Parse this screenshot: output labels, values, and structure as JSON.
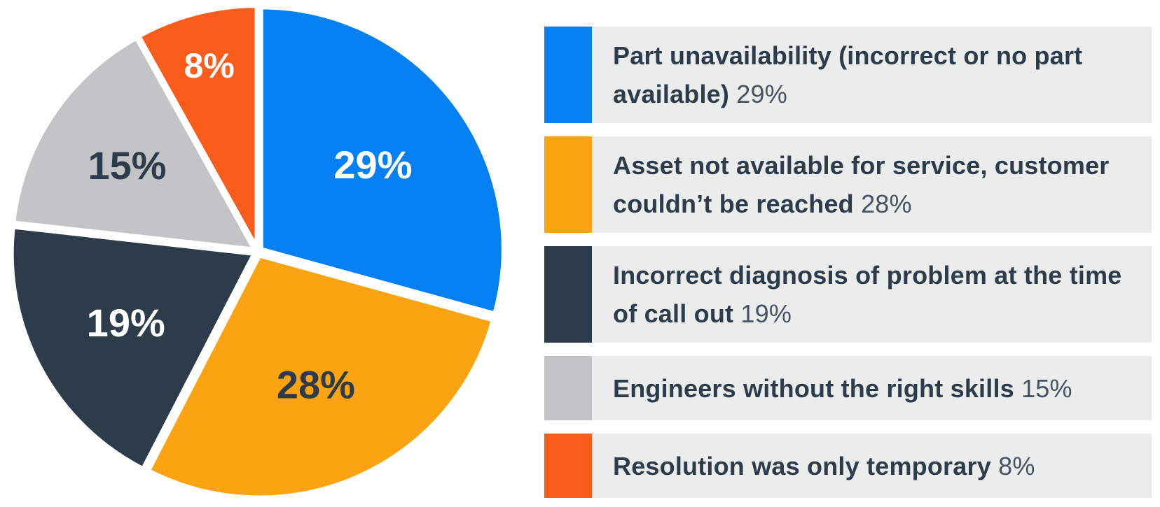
{
  "chart_data": {
    "type": "pie",
    "title": "",
    "unit": "%",
    "start_angle_deg": 0,
    "direction": "clockwise",
    "legend_position": "right",
    "grid": false,
    "slice_gap_color": "#FFFFFF",
    "legend_row_bg": "#EBECEC",
    "legend_text_color": "#2E3B4A",
    "legend_value_color": "#46525F",
    "slices": [
      {
        "label": "Part unavailability (incorrect or no part available)",
        "value": 29,
        "value_text": "29%",
        "color": "#0580F2",
        "value_label_color": "#FFFFFF"
      },
      {
        "label": "Asset not available for service, customer couldn’t be reached",
        "value": 28,
        "value_text": "28%",
        "color": "#FBA311",
        "value_label_color": "#2E3B4A"
      },
      {
        "label": "Incorrect diagnosis of problem at the time of call out",
        "value": 19,
        "value_text": "19%",
        "color": "#2E3B4A",
        "value_label_color": "#FFFFFF"
      },
      {
        "label": "Engineers without the right skills",
        "value": 15,
        "value_text": "15%",
        "color": "#C3C4C6",
        "value_label_color": "#2E3B4A"
      },
      {
        "label": "Resolution was only temporary",
        "value": 8,
        "value_text": "8%",
        "color": "#FA5C1C",
        "value_label_color": "#FFFFFF"
      }
    ]
  }
}
